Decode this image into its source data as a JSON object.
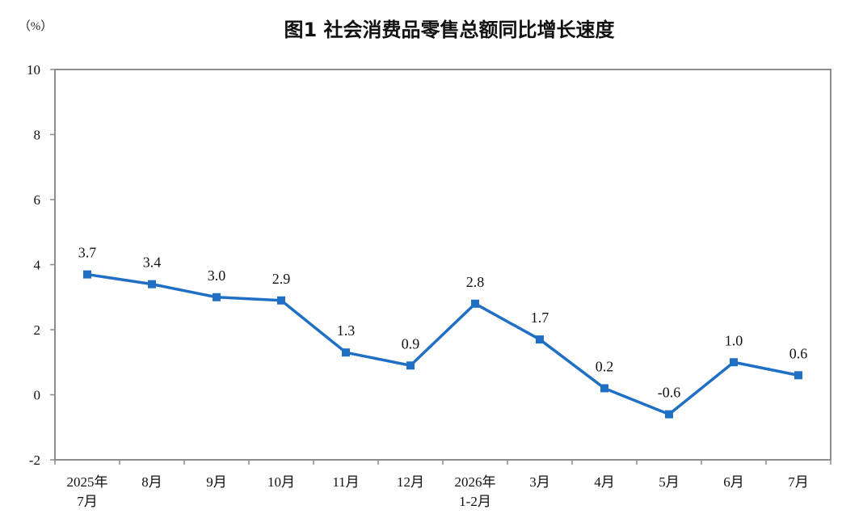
{
  "chart_data": {
    "type": "line",
    "title": "图1  社会消费品零售总额同比增长速度",
    "unit_label": "（%）",
    "categories": [
      [
        "2025年",
        "7月"
      ],
      [
        "8月"
      ],
      [
        "9月"
      ],
      [
        "10月"
      ],
      [
        "11月"
      ],
      [
        "12月"
      ],
      [
        "2026年",
        "1-2月"
      ],
      [
        "3月"
      ],
      [
        "4月"
      ],
      [
        "5月"
      ],
      [
        "6月"
      ],
      [
        "7月"
      ]
    ],
    "values": [
      3.7,
      3.4,
      3.0,
      2.9,
      1.3,
      0.9,
      2.8,
      1.7,
      0.2,
      -0.6,
      1.0,
      0.6
    ],
    "data_labels": [
      "3.7",
      "3.4",
      "3.0",
      "2.9",
      "1.3",
      "0.9",
      "2.8",
      "1.7",
      "0.2",
      "-0.6",
      "1.0",
      "0.6"
    ],
    "ylim": [
      -2,
      10
    ],
    "yticks": [
      -2,
      0,
      2,
      4,
      6,
      8,
      10
    ],
    "grid": false,
    "legend": "none",
    "line_color": "#1f6fc5",
    "frame_color": "#8c8c8c"
  }
}
